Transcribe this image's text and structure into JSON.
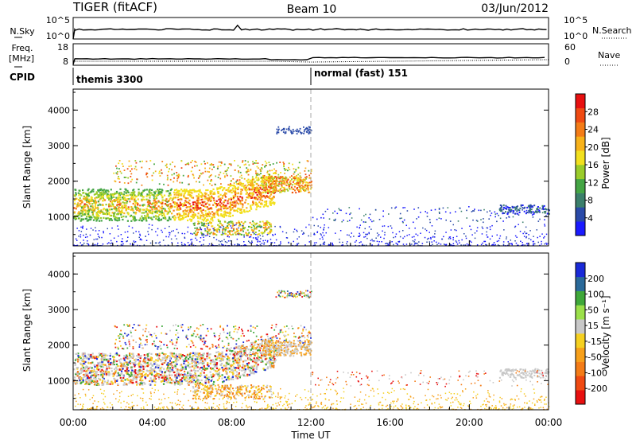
{
  "header": {
    "radar_title": "TIGER (fitACF)",
    "beam_title": "Beam 10",
    "date_title": "03/Jun/2012"
  },
  "colors": {
    "power_scale": [
      "#1a1aff",
      "#2a4aa8",
      "#3b7f6b",
      "#44a544",
      "#9acc2a",
      "#f2e01e",
      "#f7b21a",
      "#f47c17",
      "#f04a12",
      "#e81010"
    ],
    "velocity_scale": [
      "#e81010",
      "#f04a12",
      "#f47c17",
      "#f7a01a",
      "#f5d020",
      "#c8c8c8",
      "#9be04a",
      "#3fa83a",
      "#2a6a9a",
      "#1a2ad8"
    ],
    "dashed_line": "#aaaaaa"
  },
  "chart_data": [
    {
      "type": "line",
      "id": "sky-noise-search",
      "left_label": "N.Sky",
      "left_ticks": [
        "10^5",
        "10^0"
      ],
      "right_ticks": [
        "10^5",
        "10^0"
      ],
      "right_label": "N.Search",
      "right_legend_style": "dotted"
    },
    {
      "type": "line",
      "id": "freq-nave",
      "left_label": "Freq.",
      "left_unit": "[MHz]",
      "left_ticks": [
        "18",
        "8"
      ],
      "right_ticks": [
        "60",
        "0"
      ],
      "right_label": "Nave",
      "right_legend_style": "dotted"
    },
    {
      "type": "table",
      "id": "cpid",
      "label": "CPID",
      "segments": [
        {
          "start_hour": 0,
          "end_hour": 12,
          "text": "themis 3300"
        },
        {
          "start_hour": 12,
          "end_hour": 24,
          "text": "normal (fast) 151"
        }
      ]
    },
    {
      "type": "heatmap",
      "id": "power-panel",
      "ylabel": "Slant Range [km]",
      "yticks": [
        "4000",
        "3000",
        "2000",
        "1000"
      ],
      "ylim": [
        180,
        4590
      ],
      "colorbar_label": "Power [dB]",
      "colorbar_ticks": [
        "28",
        "24",
        "20",
        "16",
        "12",
        "8",
        "4"
      ],
      "colorbar_range": [
        0,
        32
      ]
    },
    {
      "type": "heatmap",
      "id": "velocity-panel",
      "ylabel": "Slant Range [km]",
      "yticks": [
        "4000",
        "3000",
        "2000",
        "1000"
      ],
      "ylim": [
        180,
        4590
      ],
      "colorbar_label": "Velocity [m s⁻¹]",
      "colorbar_ticks": [
        "200",
        "100",
        "50",
        "15",
        "-15",
        "-50",
        "-100",
        "-200"
      ]
    }
  ],
  "xaxis": {
    "ticks": [
      "00:00",
      "04:00",
      "08:00",
      "12:00",
      "16:00",
      "20:00",
      "00:00"
    ],
    "xlabel": "Time UT",
    "hour_range": [
      0,
      24
    ],
    "mode_change_hour": 12
  }
}
